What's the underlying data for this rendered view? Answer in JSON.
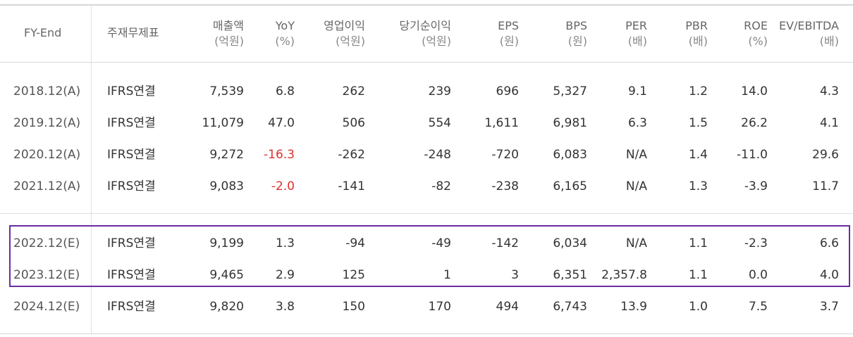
{
  "headers": [
    {
      "line1": "FY-End",
      "line2": ""
    },
    {
      "line1": "주재무제표",
      "line2": ""
    },
    {
      "line1": "매출액",
      "line2": "(억원)"
    },
    {
      "line1": "YoY",
      "line2": "(%)"
    },
    {
      "line1": "영업이익",
      "line2": "(억원)"
    },
    {
      "line1": "당기순이익",
      "line2": "(억원)"
    },
    {
      "line1": "EPS",
      "line2": "(원)"
    },
    {
      "line1": "BPS",
      "line2": "(원)"
    },
    {
      "line1": "PER",
      "line2": "(배)"
    },
    {
      "line1": "PBR",
      "line2": "(배)"
    },
    {
      "line1": "ROE",
      "line2": "(%)"
    },
    {
      "line1": "EV/EBITDA",
      "line2": "(배)"
    }
  ],
  "rows": [
    [
      "2018.12(A)",
      "IFRS연결",
      "7,539",
      "6.8",
      "262",
      "239",
      "696",
      "5,327",
      "9.1",
      "1.2",
      "14.0",
      "4.3"
    ],
    [
      "2019.12(A)",
      "IFRS연결",
      "11,079",
      "47.0",
      "506",
      "554",
      "1,611",
      "6,981",
      "6.3",
      "1.5",
      "26.2",
      "4.1"
    ],
    [
      "2020.12(A)",
      "IFRS연결",
      "9,272",
      "-16.3",
      "-262",
      "-248",
      "-720",
      "6,083",
      "N/A",
      "1.4",
      "-11.0",
      "29.6"
    ],
    [
      "2021.12(A)",
      "IFRS연결",
      "9,083",
      "-2.0",
      "-141",
      "-82",
      "-238",
      "6,165",
      "N/A",
      "1.3",
      "-3.9",
      "11.7"
    ],
    [
      "2022.12(E)",
      "IFRS연결",
      "9,199",
      "1.3",
      "-94",
      "-49",
      "-142",
      "6,034",
      "N/A",
      "1.1",
      "-2.3",
      "6.6"
    ],
    [
      "2023.12(E)",
      "IFRS연결",
      "9,465",
      "2.9",
      "125",
      "1",
      "3",
      "6,351",
      "2,357.8",
      "1.1",
      "0.0",
      "4.0"
    ],
    [
      "2024.12(E)",
      "IFRS연결",
      "9,820",
      "3.8",
      "150",
      "170",
      "494",
      "6,743",
      "13.9",
      "1.0",
      "7.5",
      "3.7"
    ]
  ],
  "colors": {
    "negative_yoy": "#e0302c",
    "highlight_border": "#6a2ea0"
  }
}
